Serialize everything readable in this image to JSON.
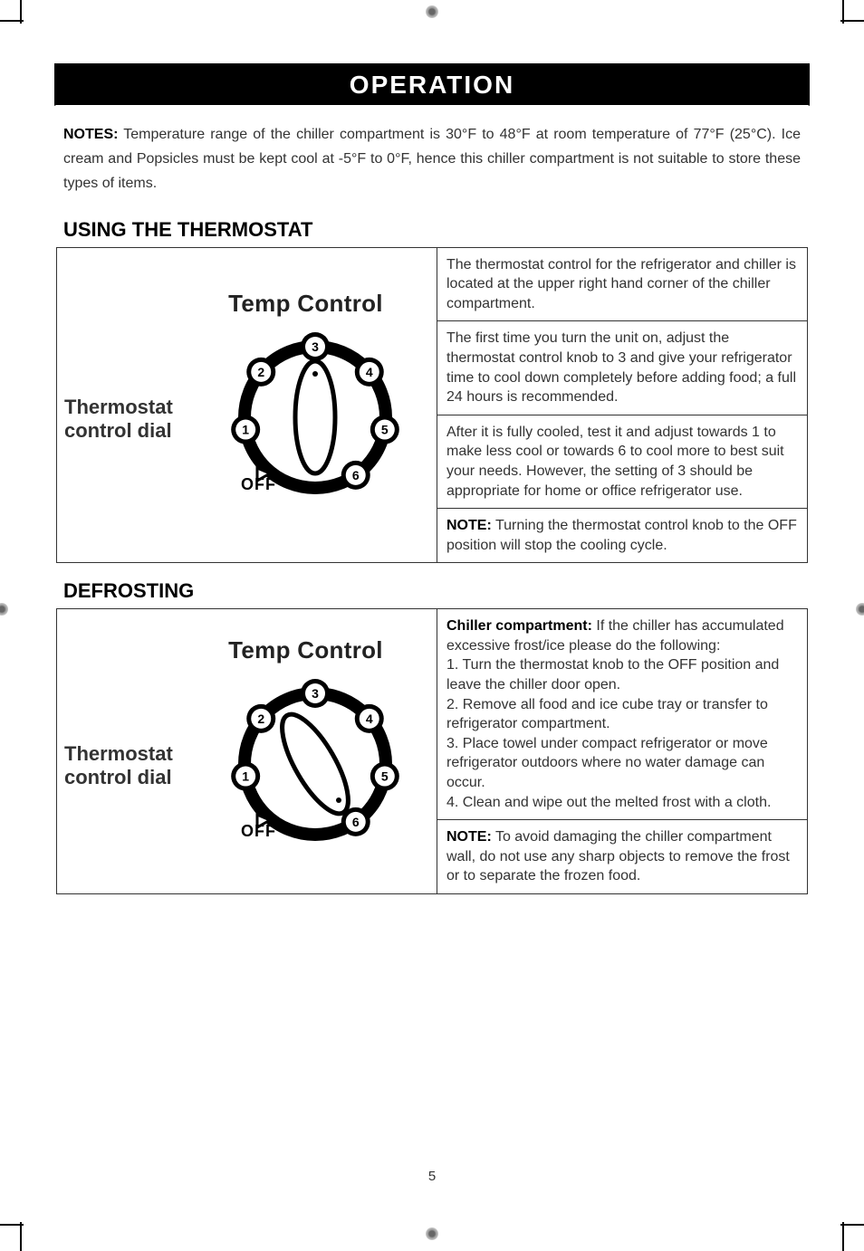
{
  "page_number": "5",
  "section_bar": "OPERATION",
  "notes": {
    "label": "NOTES:",
    "text": " Temperature range of the chiller compartment is 30°F to 48°F at room temperature of 77°F (25°C). Ice cream and Popsicles must be kept cool at -5°F to 0°F, hence this chiller compartment is not suitable to store these types of items."
  },
  "thermostat": {
    "heading": "USING THE THERMOSTAT",
    "dial_label_line1": "Thermostat",
    "dial_label_line2": "control dial",
    "temp_control": "Temp Control",
    "off": "OFF",
    "numbers": [
      "1",
      "2",
      "3",
      "4",
      "5",
      "6"
    ],
    "blocks": [
      "The thermostat control for the refrigerator and chiller is located at the upper right hand corner of the chiller compartment.",
      "The first time you turn the unit on, adjust the thermostat control knob to 3 and give your refrigerator time to cool down completely before adding food; a full 24 hours is recommended.",
      "After it is fully cooled, test it and adjust towards 1 to make less cool or towards 6 to cool more to best suit your needs. However, the setting of 3 should be appropriate for home or office refrigerator use.",
      {
        "bold": "NOTE:",
        "text": " Turning the thermostat control knob to the OFF position will stop the cooling cycle."
      }
    ]
  },
  "defrosting": {
    "heading": "DEFROSTING",
    "dial_label_line1": "Thermostat",
    "dial_label_line2": "control dial",
    "temp_control": "Temp Control",
    "off": "OFF",
    "blocks": [
      {
        "bold": "Chiller   compartment:",
        "text": " If the chiller has accumulated excessive frost/ice please do the following:\n1. Turn the thermostat knob to the OFF position and leave the chiller door open.\n2. Remove all food and ice cube tray or transfer to refrigerator compartment.\n3. Place towel under compact refrigerator or move refrigerator outdoors where no water damage can occur.\n4. Clean and wipe out the melted frost with a cloth."
      },
      {
        "bold": "NOTE:",
        "text": " To avoid damaging the chiller compartment wall, do not use any sharp objects to remove the frost or to separate the frozen food."
      }
    ]
  },
  "dial_svg": {
    "pointer_setting_1": 3,
    "pointer_setting_2": "OFF",
    "colors": {
      "stroke": "#000000",
      "fill_white": "#ffffff"
    }
  }
}
